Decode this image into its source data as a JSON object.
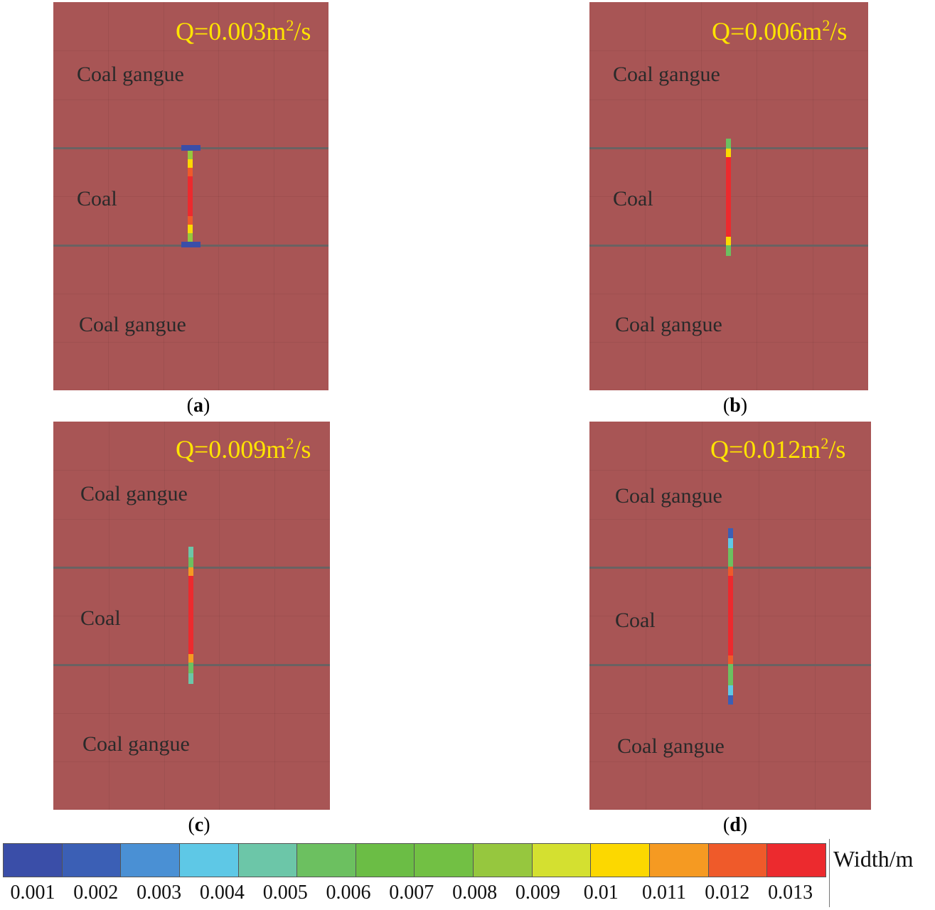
{
  "panels": [
    {
      "id": "a",
      "caption": "a",
      "q_value": "Q=0.003m",
      "q_exp": "2",
      "q_unit": "/s",
      "top_layer": "Coal gangue",
      "middle_layer": "Coal",
      "bottom_layer": "Coal gangue"
    },
    {
      "id": "b",
      "caption": "b",
      "q_value": "Q=0.006m",
      "q_exp": "2",
      "q_unit": "/s",
      "top_layer": "Coal gangue",
      "middle_layer": "Coal",
      "bottom_layer": "Coal gangue"
    },
    {
      "id": "c",
      "caption": "c",
      "q_value": "Q=0.009m",
      "q_exp": "2",
      "q_unit": "/s",
      "top_layer": "Coal gangue",
      "middle_layer": "Coal",
      "bottom_layer": "Coal gangue"
    },
    {
      "id": "d",
      "caption": "d",
      "q_value": "Q=0.012m",
      "q_exp": "2",
      "q_unit": "/s",
      "top_layer": "Coal gangue",
      "middle_layer": "Coal",
      "bottom_layer": "Coal gangue"
    }
  ],
  "legend": {
    "title": "Width/m",
    "colors": [
      "#3a4ea8",
      "#3b5fb5",
      "#4a90d4",
      "#5ec8e6",
      "#6cc6a8",
      "#6cc060",
      "#6bbd45",
      "#72c044",
      "#96c73e",
      "#d4e030",
      "#fcd800",
      "#f59a22",
      "#ef5a2a",
      "#ec2a2e"
    ],
    "ticks": [
      "0.001",
      "0.002",
      "0.003",
      "0.004",
      "0.005",
      "0.006",
      "0.007",
      "0.008",
      "0.009",
      "0.01",
      "0.011",
      "0.012",
      "0.013"
    ]
  }
}
